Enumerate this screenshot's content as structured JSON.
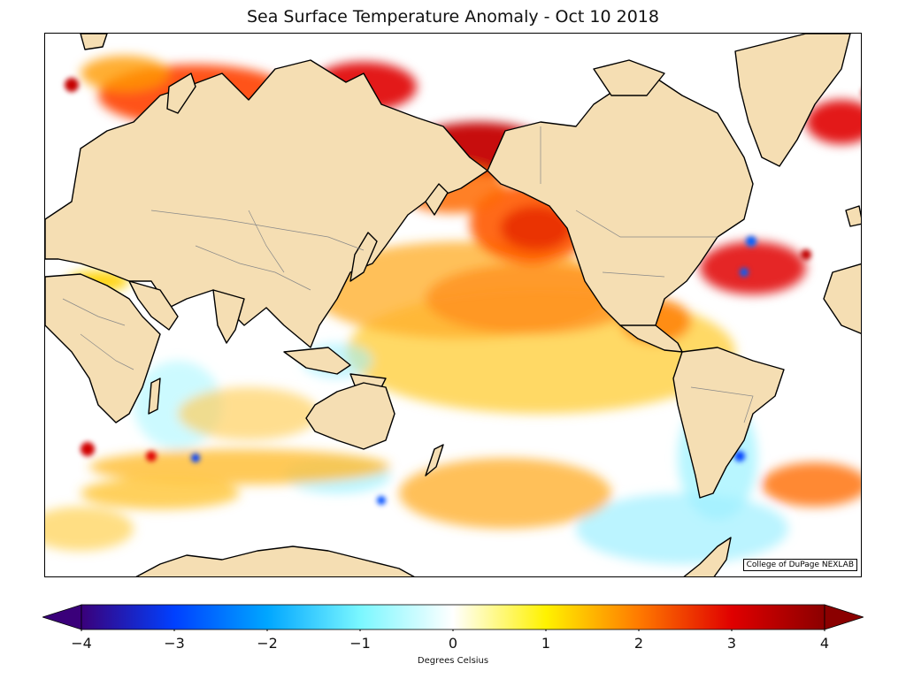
{
  "title": "Sea Surface Temperature Anomaly - Oct 10 2018",
  "credit": "College of DuPage NEXLAB",
  "colorbar": {
    "label": "Degrees Celsius",
    "min": -4,
    "max": 4,
    "ticks": [
      "−4",
      "−3",
      "−2",
      "−1",
      "0",
      "1",
      "2",
      "3",
      "4"
    ],
    "stops": [
      {
        "value": -4,
        "color": "#3a007a"
      },
      {
        "value": -3,
        "color": "#0040ff"
      },
      {
        "value": -2,
        "color": "#00a6ff"
      },
      {
        "value": -1,
        "color": "#7af7ff"
      },
      {
        "value": 0,
        "color": "#ffffff"
      },
      {
        "value": 1,
        "color": "#fff200"
      },
      {
        "value": 2,
        "color": "#ff7a00"
      },
      {
        "value": 3,
        "color": "#e00000"
      },
      {
        "value": 4,
        "color": "#8b0000"
      }
    ]
  },
  "map": {
    "land_color": "#f5deb3",
    "ocean_color": "#ffffff"
  }
}
